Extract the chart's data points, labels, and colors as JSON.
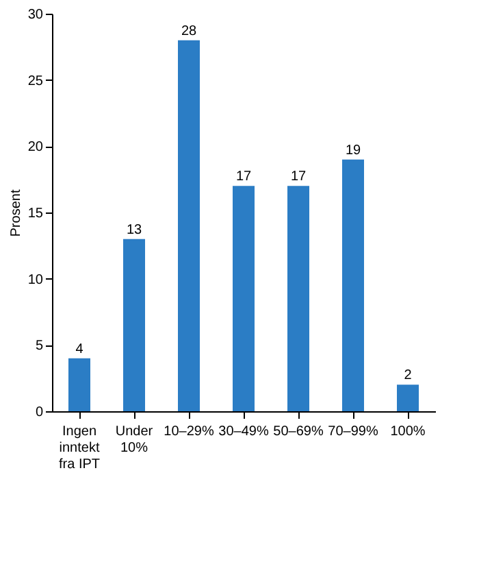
{
  "chart_data": {
    "type": "bar",
    "ylabel": "Prosent",
    "categories": [
      "Ingen inntekt fra IPT",
      "Under 10%",
      "10–29%",
      "30–49%",
      "50–69%",
      "70–99%",
      "100%"
    ],
    "values": [
      4,
      13,
      28,
      17,
      17,
      19,
      2
    ],
    "color": "#2b7dc5",
    "ylim": [
      0,
      30
    ],
    "yticks": [
      0,
      5,
      10,
      15,
      20,
      25,
      30
    ],
    "grid": false,
    "data_labels": true
  }
}
